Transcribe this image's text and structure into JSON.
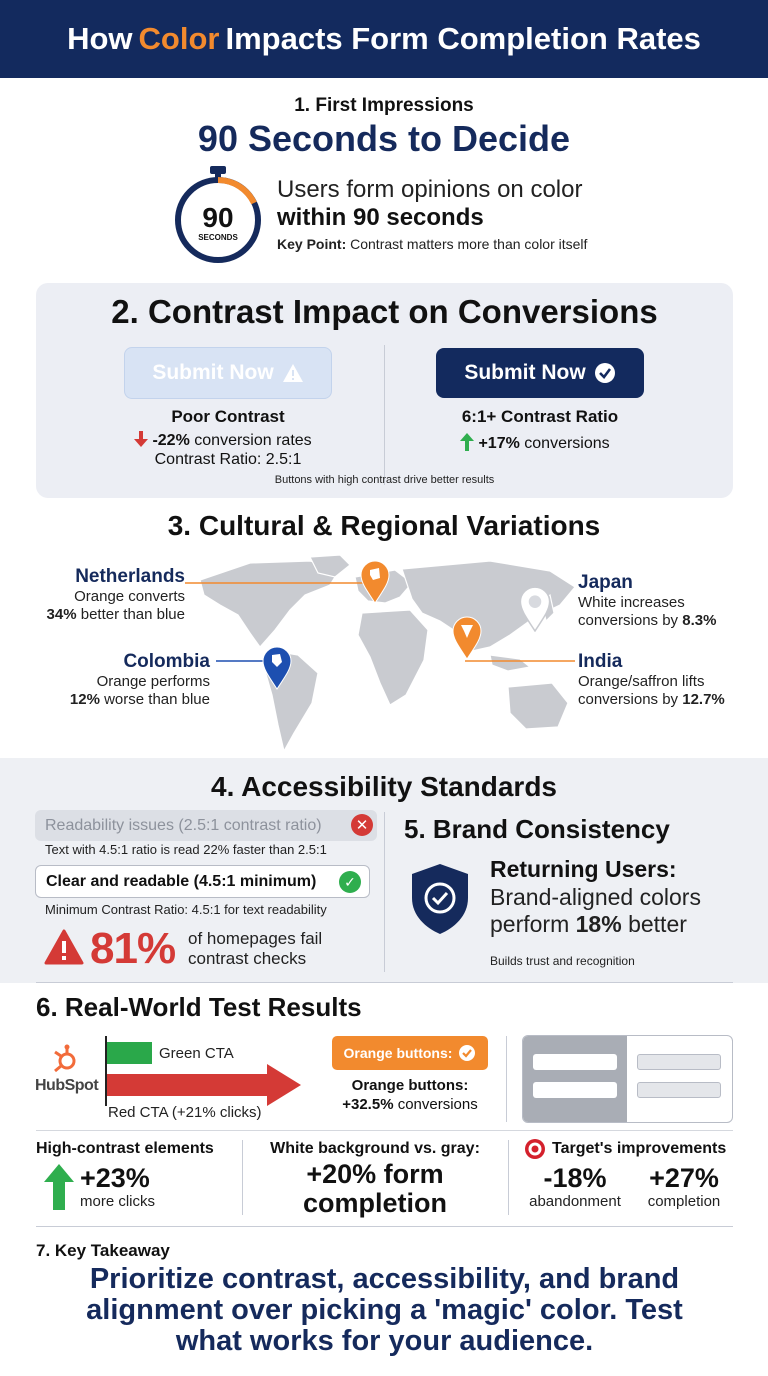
{
  "header": {
    "title_pre": "How",
    "title_highlight": "Color",
    "title_post": "Impacts Form Completion Rates",
    "highlight_color": "#f28a2e",
    "background": "#132a5e"
  },
  "section1": {
    "kicker": "1. First Impressions",
    "title": "90 Seconds to Decide",
    "timer_number": "90",
    "timer_unit": "SECONDS",
    "timer_icon": "stopwatch-icon",
    "line1": "Users form opinions on color",
    "line2": "within 90 seconds",
    "key_label": "Key Point:",
    "key_text": "Contrast matters more than color itself"
  },
  "section2": {
    "title": "2. Contrast Impact on Conversions",
    "poor_button": "Submit Now",
    "poor_icon": "warning-icon",
    "good_button": "Submit Now",
    "good_icon": "check-circle-icon",
    "poor_head": "Poor Contrast",
    "poor_rate_value": "-22%",
    "poor_rate_text": "conversion rates",
    "poor_ratio": "Contrast Ratio: 2.5:1",
    "good_head": "6:1+ Contrast Ratio",
    "good_rate_value": "+17%",
    "good_rate_text": "conversions",
    "note": "Buttons with high contrast drive better results"
  },
  "section3": {
    "title": "3. Cultural & Regional Variations",
    "map_icon": "world-map-icon",
    "regions": [
      {
        "name": "Netherlands",
        "line1": "Orange converts",
        "value": "34%",
        "line2": "better than blue",
        "pin_color": "#f28a2e"
      },
      {
        "name": "Colombia",
        "line1": "Orange performs",
        "value": "12%",
        "line2": "worse than blue",
        "pin_color": "#1d4fb0"
      },
      {
        "name": "Japan",
        "line1": "White increases",
        "line2": "conversions by",
        "value": "8.3%",
        "pin_color": "#ffffff"
      },
      {
        "name": "India",
        "line1": "Orange/saffron lifts",
        "line2": "conversions by",
        "value": "12.7%",
        "pin_color": "#f28a2e"
      }
    ]
  },
  "section4": {
    "title": "4. Accessibility Standards",
    "bad_pill": "Readability issues (2.5:1 contrast ratio)",
    "note1": "Text with 4.5:1 ratio is read 22% faster than 2.5:1",
    "good_pill": "Clear and readable (4.5:1 minimum)",
    "note2": "Minimum Contrast Ratio: 4.5:1 for text readability",
    "fail_value": "81%",
    "fail_line1": "of homepages fail",
    "fail_line2": "contrast checks"
  },
  "section5": {
    "title": "5. Brand Consistency",
    "icon": "shield-check-icon",
    "head": "Returning Users:",
    "body_line1": "Brand-aligned colors",
    "body_pre": "perform",
    "body_value": "18%",
    "body_post": "better",
    "note": "Builds trust and recognition"
  },
  "section6": {
    "title": "6. Real-World Test Results",
    "hubspot_logo": "HubSpot",
    "green_label": "Green CTA",
    "red_label": "Red CTA (+21% clicks)",
    "orange_button": "Orange buttons:",
    "orange_head": "Orange buttons:",
    "orange_value": "+32.5%",
    "orange_text": "conversions",
    "high_contrast_title": "High-contrast elements",
    "high_contrast_value": "+23%",
    "high_contrast_text": "more clicks",
    "white_bg_title": "White background vs. gray:",
    "white_bg_line1": "+20% form",
    "white_bg_line2": "completion",
    "target_title": "Target's improvements",
    "target_icon": "target-logo-icon",
    "target_a_value": "-18%",
    "target_a_text": "abandonment",
    "target_b_value": "+27%",
    "target_b_text": "completion"
  },
  "section7": {
    "kicker": "7. Key Takeaway",
    "line1": "Prioritize contrast, accessibility, and brand",
    "line2": "alignment over picking a 'magic' color. Test",
    "line3": "what works for your audience."
  }
}
